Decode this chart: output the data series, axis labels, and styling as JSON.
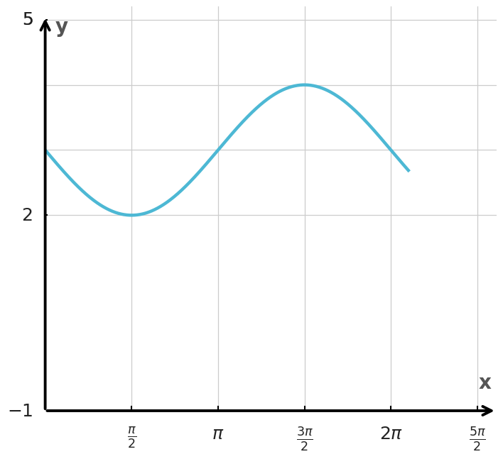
{
  "title": "",
  "xlabel": "x",
  "ylabel": "y",
  "xlim": [
    0,
    8.2
  ],
  "ylim": [
    -1,
    5.2
  ],
  "x_ticks": [
    1.5707963,
    3.1415927,
    4.712389,
    6.2831853,
    7.8539816
  ],
  "x_tick_labels": [
    "\\frac{\\pi}{2}",
    "\\pi",
    "\\frac{3\\pi}{2}",
    "2\\pi",
    "\\frac{5\\pi}{2}"
  ],
  "y_ticks": [
    2,
    5
  ],
  "y_tick_labels": [
    "2",
    "5"
  ],
  "curve_color": "#4db8d4",
  "curve_linewidth": 3.2,
  "amplitude": -1,
  "vertical_shift": 3,
  "x_start": 0,
  "x_end": 6.6,
  "background_color": "#ffffff",
  "grid_color": "#cccccc",
  "axis_color": "#000000",
  "label_fontsize": 20,
  "tick_fontsize": 18,
  "axis_label_color": "#555555"
}
